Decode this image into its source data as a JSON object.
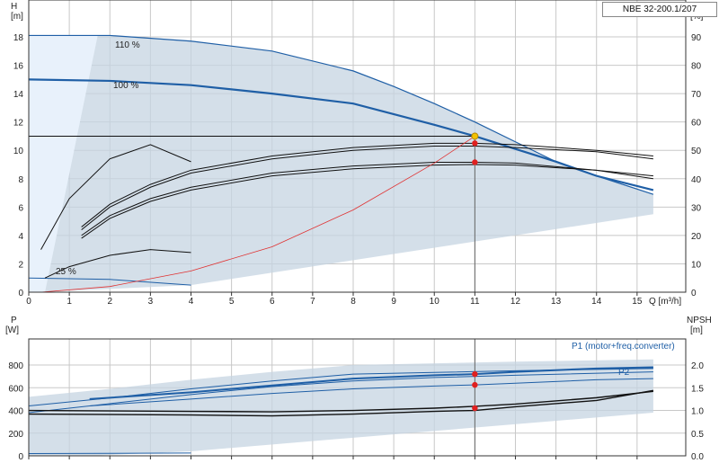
{
  "chart_data": [
    {
      "type": "line",
      "title": "NBE 32-200.1/207",
      "xlabel": "Q [m³/h]",
      "ylabel": "H\n[m]",
      "ylabel_right": "eta\n[%]",
      "xlim": [
        0,
        16.2
      ],
      "ylim": [
        0,
        20.6
      ],
      "y2lim": [
        0,
        103
      ],
      "x_ticks": [
        0,
        1,
        2,
        3,
        4,
        5,
        6,
        7,
        8,
        9,
        10,
        11,
        12,
        13,
        14,
        15
      ],
      "y_ticks": [
        0,
        2,
        4,
        6,
        8,
        10,
        12,
        14,
        16,
        18
      ],
      "y2_ticks": [
        0,
        10,
        20,
        30,
        40,
        50,
        60,
        70,
        80,
        90
      ],
      "grid": true,
      "duty_point": {
        "Q": 11,
        "H": 11
      },
      "curve_labels": [
        "110 %",
        "100 %",
        "25 %"
      ],
      "series": [
        {
          "role": "head",
          "points": [
            [
              0,
              18.1
            ],
            [
              2,
              18.1
            ],
            [
              4,
              17.7
            ],
            [
              6,
              17.0
            ],
            [
              8,
              15.6
            ],
            [
              9,
              14.5
            ],
            [
              10,
              13.3
            ],
            [
              11,
              12.0
            ],
            [
              12,
              10.6
            ],
            [
              13,
              9.2
            ],
            [
              14,
              8.2
            ],
            [
              15.4,
              6.9
            ]
          ]
        },
        {
          "role": "head",
          "points": [
            [
              0,
              15.0
            ],
            [
              2,
              14.9
            ],
            [
              4,
              14.6
            ],
            [
              6,
              14.0
            ],
            [
              8,
              13.3
            ],
            [
              10,
              11.8
            ],
            [
              11,
              11.0
            ],
            [
              12,
              10.1
            ],
            [
              13,
              9.2
            ],
            [
              14,
              8.2
            ],
            [
              15.4,
              7.2
            ]
          ]
        },
        {
          "role": "head",
          "points": [
            [
              0,
              1.0
            ],
            [
              2,
              0.9
            ],
            [
              4,
              0.5
            ]
          ]
        },
        {
          "role": "efficiency",
          "points": [
            [
              1.3,
              23
            ],
            [
              2,
              31
            ],
            [
              3,
              38
            ],
            [
              4,
              43
            ],
            [
              6,
              48
            ],
            [
              8,
              51
            ],
            [
              10,
              52.5
            ],
            [
              11,
              52.5
            ],
            [
              12,
              52
            ],
            [
              14,
              50
            ],
            [
              15.4,
              48
            ]
          ]
        },
        {
          "role": "efficiency",
          "points": [
            [
              1.3,
              22
            ],
            [
              2,
              30
            ],
            [
              3,
              37
            ],
            [
              4,
              42
            ],
            [
              6,
              47
            ],
            [
              8,
              50
            ],
            [
              10,
              51.5
            ],
            [
              11,
              51.5
            ],
            [
              12,
              51
            ],
            [
              14,
              49.5
            ],
            [
              15.4,
              47
            ]
          ]
        },
        {
          "role": "efficiency",
          "points": [
            [
              1.3,
              20
            ],
            [
              2,
              27
            ],
            [
              3,
              33
            ],
            [
              4,
              37
            ],
            [
              6,
              42
            ],
            [
              8,
              44.5
            ],
            [
              10,
              45.8
            ],
            [
              11,
              45.8
            ],
            [
              12,
              45.5
            ],
            [
              14,
              43
            ],
            [
              15.4,
              40
            ]
          ]
        },
        {
          "role": "efficiency",
          "points": [
            [
              1.3,
              19
            ],
            [
              2,
              26
            ],
            [
              3,
              32
            ],
            [
              4,
              36
            ],
            [
              6,
              41
            ],
            [
              8,
              43.5
            ],
            [
              10,
              44.8
            ],
            [
              11,
              45
            ],
            [
              12,
              44.8
            ],
            [
              14,
              43
            ],
            [
              15.4,
              41
            ]
          ]
        },
        {
          "role": "efficiency",
          "points": [
            [
              0.3,
              15
            ],
            [
              1,
              33
            ],
            [
              2,
              47
            ],
            [
              3,
              52
            ],
            [
              4,
              46
            ]
          ]
        },
        {
          "role": "efficiency",
          "points": [
            [
              0.4,
              5
            ],
            [
              1,
              9
            ],
            [
              2,
              13
            ],
            [
              3,
              15
            ],
            [
              4,
              14
            ]
          ]
        },
        {
          "role": "system",
          "points": [
            [
              0.3,
              0
            ],
            [
              2,
              0.4
            ],
            [
              4,
              1.5
            ],
            [
              6,
              3.2
            ],
            [
              8,
              5.8
            ],
            [
              10,
              9.1
            ],
            [
              11,
              11.0
            ]
          ]
        }
      ]
    },
    {
      "type": "line",
      "xlabel": "",
      "ylabel": "P\n[W]",
      "ylabel_right": "NPSH\n[m]",
      "xlim": [
        0,
        16.2
      ],
      "ylim": [
        0,
        1030
      ],
      "y2lim": [
        0,
        2.575
      ],
      "y_ticks": [
        0,
        200,
        400,
        600,
        800
      ],
      "y2_ticks": [
        "0.0",
        "0.5",
        "1.0",
        "1.5",
        "2.0"
      ],
      "grid": true,
      "series": [
        {
          "name": "P1 (motor+freq.converter)",
          "points": [
            [
              1.5,
              500
            ],
            [
              4,
              560
            ],
            [
              6,
              620
            ],
            [
              8,
              680
            ],
            [
              10,
              710
            ],
            [
              11,
              720
            ],
            [
              12,
              740
            ],
            [
              14,
              770
            ],
            [
              15.4,
              780
            ]
          ]
        },
        {
          "name": "P2",
          "points": [
            [
              1.5,
              440
            ],
            [
              4,
              500
            ],
            [
              6,
              550
            ],
            [
              8,
              590
            ],
            [
              10,
              615
            ],
            [
              11,
              625
            ],
            [
              12,
              640
            ],
            [
              14,
              670
            ],
            [
              15.4,
              680
            ]
          ]
        },
        {
          "role": "power",
          "points": [
            [
              0,
              440
            ],
            [
              2,
              510
            ],
            [
              4,
              590
            ],
            [
              6,
              660
            ],
            [
              8,
              720
            ],
            [
              10,
              735
            ],
            [
              12,
              750
            ],
            [
              15.4,
              770
            ]
          ]
        },
        {
          "role": "power",
          "points": [
            [
              0,
              380
            ],
            [
              2,
              460
            ],
            [
              4,
              540
            ],
            [
              6,
              610
            ],
            [
              8,
              660
            ],
            [
              10,
              690
            ],
            [
              12,
              710
            ],
            [
              15.4,
              740
            ]
          ]
        },
        {
          "role": "npsh",
          "points": [
            [
              0,
              1.0
            ],
            [
              4,
              0.98
            ],
            [
              6,
              0.97
            ],
            [
              8,
              1.0
            ],
            [
              10,
              1.05
            ],
            [
              11,
              1.09
            ],
            [
              12,
              1.14
            ],
            [
              14,
              1.28
            ],
            [
              15.4,
              1.42
            ]
          ]
        },
        {
          "role": "npsh",
          "points": [
            [
              0,
              0.92
            ],
            [
              4,
              0.9
            ],
            [
              6,
              0.88
            ],
            [
              8,
              0.92
            ],
            [
              10,
              0.98
            ],
            [
              11,
              1.0
            ],
            [
              12,
              1.08
            ],
            [
              14,
              1.22
            ],
            [
              15.4,
              1.44
            ]
          ]
        },
        {
          "role": "power",
          "points": [
            [
              0,
              20
            ],
            [
              2,
              22
            ],
            [
              4,
              25
            ]
          ]
        }
      ]
    }
  ]
}
